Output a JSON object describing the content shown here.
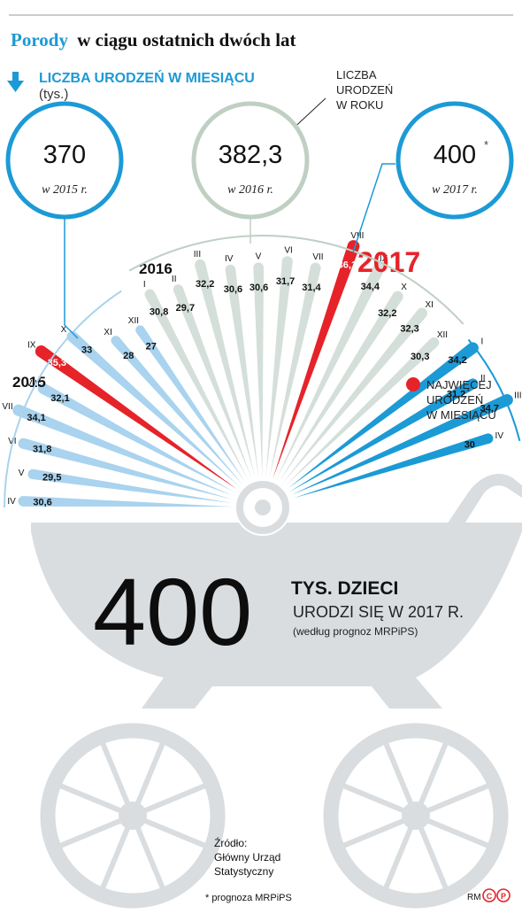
{
  "header": {
    "title_highlight": "Porody",
    "title_rest": "w ciągu ostatnich dwóch lat",
    "subtitle_label": "LICZBA URODZEŃ W MIESIĄCU",
    "subtitle_unit": "(tys.)",
    "annual_label_line1": "LICZBA",
    "annual_label_line2": "URODZEŃ",
    "annual_label_line3": "W ROKU"
  },
  "annual": [
    {
      "value_text": "370",
      "caption": "w 2015 r.",
      "asterisk": ""
    },
    {
      "value_text": "382,3",
      "caption": "w 2016 r.",
      "asterisk": ""
    },
    {
      "value_text": "400",
      "caption": "w 2017 r.",
      "asterisk": "*"
    }
  ],
  "year_labels": {
    "y2015": "2015",
    "y2016": "2016",
    "y2017": "2017"
  },
  "legend": {
    "line1": "NAJWIĘCEJ",
    "line2": "URODZEŃ",
    "line3": "W MIESIĄCU",
    "color": "#e52329"
  },
  "summary": {
    "big_number": "400",
    "line1": "TYS. DZIECI",
    "line2": "URODZI SIĘ W 2017 R.",
    "line3": "(według prognoz MRPiPS)"
  },
  "footer": {
    "source_line1": "Źródło:",
    "source_line2": "Główny Urząd",
    "source_line3": "Statystyczny",
    "footnote": "* prognoza MRPiPS",
    "credit": "RM"
  },
  "colors": {
    "accent": "#1c9ad6",
    "red": "#e52329",
    "y2015": "#a9d3ee",
    "y2016": "#d5dfd9",
    "y2017": "#1c9ad6",
    "circle2016": "#bfd0c3",
    "pram": "#d9dde0"
  },
  "chart_data": {
    "type": "bar",
    "title": "LICZBA URODZEŃ W MIESIĄCU",
    "ylabel": "(tys.)",
    "series": [
      {
        "name": "2015",
        "months": [
          "IV",
          "V",
          "VI",
          "VII",
          "VIII",
          "IX",
          "X",
          "XI",
          "XII"
        ],
        "values": [
          30.6,
          29.5,
          31.8,
          34.1,
          32.1,
          35.3,
          33,
          28,
          27
        ]
      },
      {
        "name": "2016",
        "months": [
          "I",
          "II",
          "III",
          "IV",
          "V",
          "VI",
          "VII",
          "VIII",
          "IX",
          "X",
          "XI",
          "XII"
        ],
        "values": [
          30.8,
          29.7,
          32.2,
          30.6,
          30.6,
          31.7,
          31.4,
          36.1,
          34.4,
          32.2,
          32.3,
          30.3
        ]
      },
      {
        "name": "2017",
        "months": [
          "I",
          "II",
          "III",
          "IV"
        ],
        "values": [
          34.2,
          31.2,
          34.7,
          30
        ]
      }
    ],
    "labels": {
      "2015": [
        "30,6",
        "29,5",
        "31,8",
        "34,1",
        "32,1",
        "35,3",
        "33",
        "28",
        "27"
      ],
      "2016": [
        "30,8",
        "29,7",
        "32,2",
        "30,6",
        "30,6",
        "31,7",
        "31,4",
        "36,1",
        "34,4",
        "32,2",
        "32,3",
        "30,3"
      ],
      "2017": [
        "34,2",
        "31,2",
        "34,7",
        "30"
      ]
    },
    "highlight": [
      {
        "year": "2015",
        "month": "IX"
      },
      {
        "year": "2016",
        "month": "VIII"
      }
    ]
  }
}
